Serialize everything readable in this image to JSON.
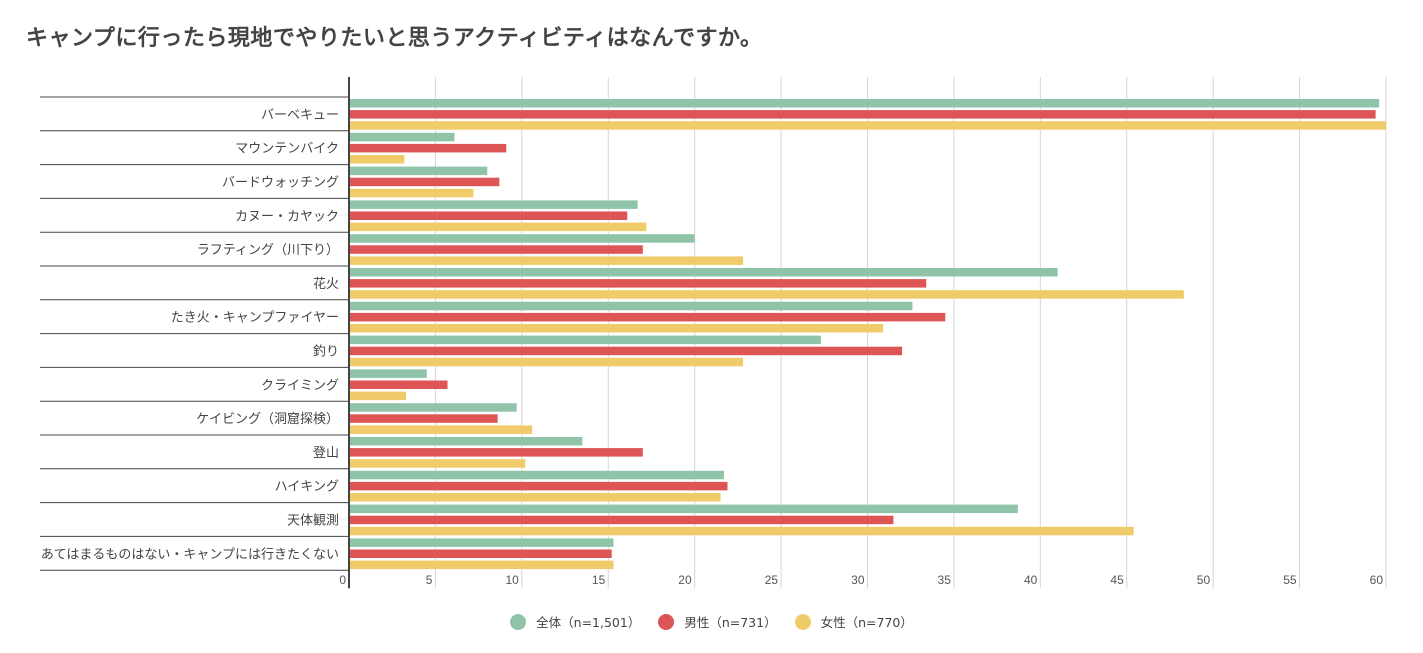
{
  "title": "キャンプに行ったら現地でやりたいと思うアクティビティはなんですか。",
  "chart_data": {
    "type": "bar",
    "orientation": "horizontal",
    "title": "キャンプに行ったら現地でやりたいと思うアクティビティはなんですか。",
    "xlabel": "",
    "ylabel": "",
    "xlim": [
      0,
      60
    ],
    "xticks": [
      0,
      5,
      10,
      15,
      20,
      25,
      30,
      35,
      40,
      45,
      50,
      55,
      60
    ],
    "grid": true,
    "legend_position": "bottom",
    "categories": [
      "バーベキュー",
      "マウンテンバイク",
      "バードウォッチング",
      "カヌー・カヤック",
      "ラフティング（川下り）",
      "花火",
      "たき火・キャンプファイヤー",
      "釣り",
      "クライミング",
      "ケイビング（洞窟探検）",
      "登山",
      "ハイキング",
      "天体観測",
      "あてはまるものはない・キャンプには行きたくない"
    ],
    "series": [
      {
        "name": "全体（n=1,501）",
        "color": "#8fc4a8",
        "values": [
          59.6,
          6.1,
          8.0,
          16.7,
          20.0,
          41.0,
          32.6,
          27.3,
          4.5,
          9.7,
          13.5,
          21.7,
          38.7,
          15.3
        ]
      },
      {
        "name": "男性（n=731）",
        "color": "#de5555",
        "values": [
          59.4,
          9.1,
          8.7,
          16.1,
          17.0,
          33.4,
          34.5,
          32.0,
          5.7,
          8.6,
          17.0,
          21.9,
          31.5,
          15.2
        ]
      },
      {
        "name": "女性（n=770）",
        "color": "#f0cb6a",
        "values": [
          60.0,
          3.2,
          7.2,
          17.2,
          22.8,
          48.3,
          30.9,
          22.8,
          3.3,
          10.6,
          10.2,
          21.5,
          45.4,
          15.3
        ]
      }
    ]
  }
}
